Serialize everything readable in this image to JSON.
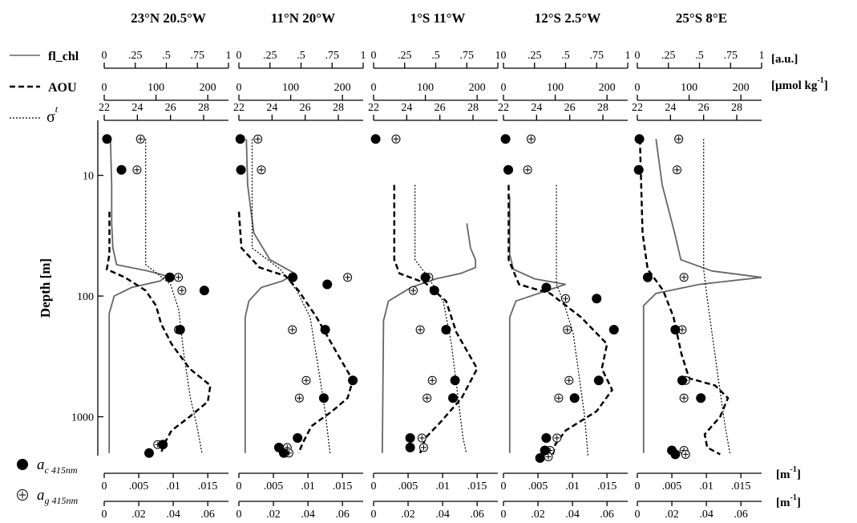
{
  "chart_data": {
    "type": "scatter",
    "panel_titles": [
      "23°N 20.5°W",
      "11°N 20°W",
      "1°S 11°W",
      "12°S 2.5°W",
      "25°S 8°E"
    ],
    "ylabel": "Depth [m]",
    "y_axis": {
      "scale": "log",
      "inverted": true,
      "range": [
        3.5,
        2100
      ],
      "ticks": [
        10,
        100,
        1000
      ],
      "tick_labels": [
        "10",
        "100",
        "1000"
      ]
    },
    "top_axes": [
      {
        "legend": "fl_chl",
        "unit": "[a.u.]",
        "range": [
          0,
          1
        ],
        "ticks": [
          0,
          0.25,
          0.5,
          0.75,
          1
        ],
        "tick_labels": [
          "0",
          ".25",
          ".5",
          ".75",
          "1"
        ],
        "style": "solid",
        "color": "#666666"
      },
      {
        "legend": "AOU",
        "unit_main": "[µmol kg",
        "unit_sup": "-1",
        "unit_end": "]",
        "range": [
          0,
          240
        ],
        "ticks": [
          0,
          100,
          200
        ],
        "tick_labels": [
          "0",
          "100",
          "200"
        ],
        "style": "dashed",
        "color": "#000000"
      },
      {
        "legend_main": "σ",
        "legend_sup": "t",
        "range": [
          22,
          29.5
        ],
        "ticks": [
          22,
          24,
          26,
          28
        ],
        "tick_labels": [
          "22",
          "24",
          "26",
          "28"
        ],
        "style": "dotted",
        "color": "#000000"
      }
    ],
    "bottom_axes": [
      {
        "legend_main": "a",
        "legend_sub": "c 415nm",
        "unit_main": "[m",
        "unit_sup": "-1",
        "unit_end": "]",
        "range": [
          0,
          0.018
        ],
        "ticks": [
          0,
          0.005,
          0.01,
          0.015
        ],
        "tick_labels": [
          "0",
          ".005",
          ".01",
          ".015"
        ],
        "marker": "filled-circle"
      },
      {
        "legend_main": "a",
        "legend_sub": "g 415nm",
        "unit_main": "[m",
        "unit_sup": "-1",
        "unit_end": "]",
        "range": [
          0,
          0.072
        ],
        "ticks": [
          0,
          0.02,
          0.04,
          0.06
        ],
        "tick_labels": [
          "0",
          ".02",
          ".04",
          ".06"
        ],
        "marker": "circle-plus"
      }
    ],
    "panels": [
      {
        "ac": [
          [
            0.0004,
            5
          ],
          [
            0.0025,
            9
          ],
          [
            0.0095,
            70
          ],
          [
            0.0145,
            90
          ],
          [
            0.011,
            190
          ],
          [
            0.0085,
            1700
          ],
          [
            0.0065,
            2000
          ]
        ],
        "ag": [
          [
            0.021,
            5
          ],
          [
            0.019,
            9
          ],
          [
            0.043,
            70
          ],
          [
            0.045,
            90
          ],
          [
            0.043,
            190
          ],
          [
            0.031,
            1700
          ]
        ],
        "fl": [
          [
            0.05,
            5
          ],
          [
            0.06,
            12
          ],
          [
            0.06,
            25
          ],
          [
            0.07,
            40
          ],
          [
            0.1,
            55
          ],
          [
            0.35,
            62
          ],
          [
            0.5,
            68
          ],
          [
            0.45,
            75
          ],
          [
            0.22,
            85
          ],
          [
            0.08,
            100
          ],
          [
            0.04,
            140
          ],
          [
            0.04,
            2000
          ]
        ],
        "aou": [
          [
            10,
            20
          ],
          [
            10,
            45
          ],
          [
            5,
            60
          ],
          [
            40,
            70
          ],
          [
            80,
            90
          ],
          [
            100,
            120
          ],
          [
            110,
            170
          ],
          [
            130,
            250
          ],
          [
            165,
            400
          ],
          [
            205,
            550
          ],
          [
            200,
            750
          ],
          [
            165,
            1000
          ],
          [
            130,
            1300
          ],
          [
            115,
            1700
          ],
          [
            110,
            2000
          ]
        ],
        "sig": [
          [
            24.5,
            5
          ],
          [
            24.5,
            55
          ],
          [
            25.2,
            65
          ],
          [
            26.0,
            80
          ],
          [
            26.5,
            130
          ],
          [
            26.8,
            300
          ],
          [
            27.2,
            700
          ],
          [
            27.6,
            1200
          ],
          [
            27.9,
            2000
          ]
        ]
      },
      {
        "ac": [
          [
            0.0002,
            5
          ],
          [
            0.0003,
            9
          ],
          [
            0.0078,
            70
          ],
          [
            0.0128,
            80
          ],
          [
            0.0125,
            190
          ],
          [
            0.0165,
            500
          ],
          [
            0.0123,
            700
          ],
          [
            0.0085,
            1500
          ],
          [
            0.0058,
            1800
          ],
          [
            0.0065,
            2000
          ]
        ],
        "ag": [
          [
            0.011,
            5
          ],
          [
            0.013,
            9
          ],
          [
            0.063,
            70
          ],
          [
            0.031,
            190
          ],
          [
            0.039,
            500
          ],
          [
            0.035,
            700
          ],
          [
            0.028,
            1800
          ],
          [
            0.029,
            2000
          ]
        ],
        "fl": [
          [
            0.06,
            5
          ],
          [
            0.07,
            12
          ],
          [
            0.12,
            30
          ],
          [
            0.25,
            50
          ],
          [
            0.45,
            65
          ],
          [
            0.35,
            75
          ],
          [
            0.18,
            85
          ],
          [
            0.08,
            110
          ],
          [
            0.05,
            150
          ],
          [
            0.05,
            2000
          ]
        ],
        "aou": [
          [
            0,
            20
          ],
          [
            5,
            40
          ],
          [
            40,
            58
          ],
          [
            90,
            68
          ],
          [
            115,
            90
          ],
          [
            150,
            150
          ],
          [
            190,
            300
          ],
          [
            220,
            500
          ],
          [
            210,
            700
          ],
          [
            180,
            900
          ],
          [
            140,
            1200
          ],
          [
            125,
            1600
          ],
          [
            115,
            2000
          ]
        ],
        "sig": [
          [
            22.8,
            5
          ],
          [
            22.8,
            40
          ],
          [
            24.5,
            60
          ],
          [
            25.5,
            90
          ],
          [
            26.3,
            150
          ],
          [
            26.8,
            400
          ],
          [
            27.2,
            900
          ],
          [
            27.5,
            2000
          ]
        ]
      },
      {
        "ac": [
          [
            0.0003,
            5
          ],
          [
            0.0075,
            70
          ],
          [
            0.0088,
            90
          ],
          [
            0.0105,
            190
          ],
          [
            0.0118,
            500
          ],
          [
            0.0115,
            700
          ],
          [
            0.0053,
            1500
          ],
          [
            0.0053,
            1800
          ]
        ],
        "ag": [
          [
            0.013,
            5
          ],
          [
            0.032,
            70
          ],
          [
            0.023,
            90
          ],
          [
            0.027,
            190
          ],
          [
            0.034,
            500
          ],
          [
            0.031,
            700
          ],
          [
            0.028,
            1500
          ],
          [
            0.029,
            1800
          ]
        ],
        "fl": [
          [
            0.75,
            25
          ],
          [
            0.78,
            40
          ],
          [
            0.82,
            50
          ],
          [
            0.82,
            58
          ],
          [
            0.7,
            65
          ],
          [
            0.5,
            72
          ],
          [
            0.3,
            85
          ],
          [
            0.12,
            110
          ],
          [
            0.08,
            160
          ],
          [
            0.07,
            2000
          ]
        ],
        "aou": [
          [
            40,
            12
          ],
          [
            40,
            50
          ],
          [
            50,
            65
          ],
          [
            100,
            78
          ],
          [
            140,
            110
          ],
          [
            160,
            200
          ],
          [
            200,
            400
          ],
          [
            170,
            700
          ],
          [
            130,
            1100
          ],
          [
            100,
            1500
          ],
          [
            90,
            2000
          ]
        ],
        "sig": [
          [
            24.5,
            12
          ],
          [
            24.5,
            50
          ],
          [
            25.3,
            70
          ],
          [
            26.2,
            110
          ],
          [
            26.7,
            250
          ],
          [
            27.1,
            700
          ],
          [
            27.4,
            1500
          ],
          [
            27.6,
            2000
          ]
        ]
      },
      {
        "ac": [
          [
            0.0003,
            5
          ],
          [
            0.0007,
            9
          ],
          [
            0.0062,
            85
          ],
          [
            0.0135,
            105
          ],
          [
            0.016,
            190
          ],
          [
            0.0138,
            500
          ],
          [
            0.0103,
            700
          ],
          [
            0.0062,
            1500
          ],
          [
            0.006,
            1900
          ],
          [
            0.0053,
            2200
          ]
        ],
        "ag": [
          [
            0.016,
            5
          ],
          [
            0.014,
            9
          ],
          [
            0.036,
            105
          ],
          [
            0.037,
            190
          ],
          [
            0.038,
            500
          ],
          [
            0.032,
            700
          ],
          [
            0.031,
            1500
          ],
          [
            0.027,
            1900
          ],
          [
            0.026,
            2150
          ]
        ],
        "fl": [
          [
            0.05,
            15
          ],
          [
            0.05,
            45
          ],
          [
            0.08,
            60
          ],
          [
            0.25,
            72
          ],
          [
            0.5,
            80
          ],
          [
            0.35,
            90
          ],
          [
            0.1,
            110
          ],
          [
            0.05,
            150
          ],
          [
            0.05,
            2000
          ]
        ],
        "aou": [
          [
            10,
            12
          ],
          [
            10,
            50
          ],
          [
            30,
            80
          ],
          [
            90,
            95
          ],
          [
            150,
            150
          ],
          [
            200,
            250
          ],
          [
            190,
            400
          ],
          [
            210,
            600
          ],
          [
            180,
            900
          ],
          [
            120,
            1300
          ],
          [
            100,
            1700
          ],
          [
            95,
            2100
          ]
        ],
        "sig": [
          [
            25.2,
            12
          ],
          [
            25.2,
            80
          ],
          [
            25.6,
            110
          ],
          [
            26.2,
            200
          ],
          [
            26.6,
            500
          ],
          [
            26.9,
            1000
          ],
          [
            27.1,
            2100
          ]
        ]
      },
      {
        "ac": [
          [
            0.0003,
            5
          ],
          [
            0.0002,
            9
          ],
          [
            0.0015,
            70
          ],
          [
            0.0055,
            190
          ],
          [
            0.0065,
            500
          ],
          [
            0.0092,
            700
          ],
          [
            0.005,
            1900
          ],
          [
            0.0055,
            2050
          ]
        ],
        "ag": [
          [
            0.024,
            5
          ],
          [
            0.023,
            9
          ],
          [
            0.027,
            70
          ],
          [
            0.026,
            190
          ],
          [
            0.028,
            500
          ],
          [
            0.027,
            700
          ],
          [
            0.027,
            1900
          ],
          [
            0.028,
            2050
          ]
        ],
        "fl": [
          [
            0.15,
            5
          ],
          [
            0.2,
            12
          ],
          [
            0.3,
            30
          ],
          [
            0.35,
            50
          ],
          [
            0.6,
            62
          ],
          [
            1.0,
            70
          ],
          [
            0.5,
            80
          ],
          [
            0.15,
            95
          ],
          [
            0.05,
            120
          ],
          [
            0.05,
            2000
          ]
        ],
        "aou": [
          [
            5,
            5
          ],
          [
            10,
            30
          ],
          [
            20,
            60
          ],
          [
            50,
            90
          ],
          [
            70,
            150
          ],
          [
            85,
            300
          ],
          [
            100,
            480
          ],
          [
            150,
            550
          ],
          [
            175,
            700
          ],
          [
            160,
            1000
          ],
          [
            130,
            1400
          ],
          [
            135,
            1800
          ],
          [
            160,
            2050
          ]
        ],
        "sig": [
          [
            26.0,
            5
          ],
          [
            26.0,
            60
          ],
          [
            26.2,
            100
          ],
          [
            26.5,
            200
          ],
          [
            26.9,
            500
          ],
          [
            27.3,
            1200
          ],
          [
            27.6,
            2050
          ]
        ]
      }
    ]
  }
}
